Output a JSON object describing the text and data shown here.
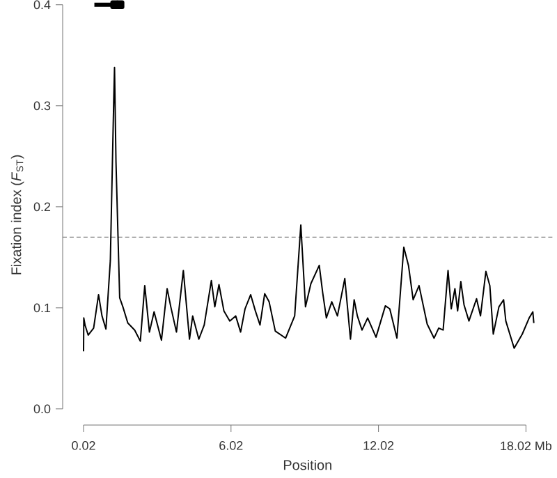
{
  "chart_data": {
    "type": "line",
    "xlabel": "Position",
    "ylabel": "Fixation index (*F*$_{ST}$)",
    "xlim": [
      -0.83,
      19.1
    ],
    "ylim": [
      -0.016,
      0.4
    ],
    "xticks": [
      0.02,
      6.02,
      12.02,
      {
        "value": 18.02,
        "label": "18.02 Mb"
      }
    ],
    "yticks": [
      {
        "value": 0,
        "label": "0.0"
      },
      0.1,
      0.2,
      0.3,
      0.4
    ],
    "ref_lines": [
      {
        "axis": "y",
        "value": 0.17,
        "color": "#666666",
        "line_style": "dashed"
      }
    ],
    "series": [
      {
        "color": "#000000",
        "x": [
          0.02,
          0.03,
          0.08,
          0.21,
          0.43,
          0.63,
          0.77,
          0.93,
          1.11,
          1.25,
          1.28,
          1.34,
          1.49,
          1.62,
          1.82,
          2.1,
          2.33,
          2.51,
          2.7,
          2.89,
          3.19,
          3.42,
          3.57,
          3.8,
          4.08,
          4.33,
          4.46,
          4.71,
          4.93,
          5.22,
          5.36,
          5.53,
          5.73,
          5.97,
          6.21,
          6.41,
          6.59,
          6.82,
          7.01,
          7.2,
          7.39,
          7.57,
          7.82,
          8.24,
          8.61,
          8.86,
          9.05,
          9.27,
          9.61,
          9.75,
          9.9,
          10.12,
          10.35,
          10.65,
          10.88,
          11.03,
          11.16,
          11.35,
          11.58,
          11.92,
          12.3,
          12.48,
          12.77,
          13.05,
          13.24,
          13.43,
          13.67,
          14.0,
          14.28,
          14.47,
          14.65,
          14.85,
          14.98,
          15.13,
          15.24,
          15.37,
          15.5,
          15.7,
          16.01,
          16.17,
          16.39,
          16.55,
          16.69,
          16.92,
          17.11,
          17.2,
          17.54,
          17.87,
          18.15,
          18.3,
          18.34
        ],
        "values": [
          0.057,
          0.09,
          0.083,
          0.073,
          0.08,
          0.113,
          0.092,
          0.079,
          0.147,
          0.308,
          0.338,
          0.244,
          0.11,
          0.101,
          0.085,
          0.078,
          0.067,
          0.122,
          0.076,
          0.096,
          0.068,
          0.119,
          0.101,
          0.076,
          0.137,
          0.069,
          0.092,
          0.069,
          0.083,
          0.127,
          0.101,
          0.123,
          0.097,
          0.087,
          0.092,
          0.076,
          0.099,
          0.113,
          0.097,
          0.083,
          0.114,
          0.106,
          0.077,
          0.07,
          0.092,
          0.182,
          0.101,
          0.124,
          0.142,
          0.115,
          0.09,
          0.106,
          0.092,
          0.129,
          0.069,
          0.108,
          0.092,
          0.078,
          0.09,
          0.071,
          0.102,
          0.099,
          0.07,
          0.16,
          0.142,
          0.108,
          0.122,
          0.084,
          0.07,
          0.08,
          0.078,
          0.137,
          0.099,
          0.119,
          0.097,
          0.126,
          0.103,
          0.087,
          0.109,
          0.092,
          0.136,
          0.122,
          0.074,
          0.101,
          0.108,
          0.087,
          0.06,
          0.074,
          0.09,
          0.096,
          0.085
        ]
      },
      {
        "color": "#000000",
        "x": [
          0.46,
          1.15
        ],
        "values": [
          0.4,
          0.4
        ]
      },
      {
        "type": "scatter",
        "marker": "square",
        "color": "#000000",
        "x": [
          1.285,
          1.505
        ],
        "values": [
          0.4,
          0.4
        ]
      }
    ]
  }
}
